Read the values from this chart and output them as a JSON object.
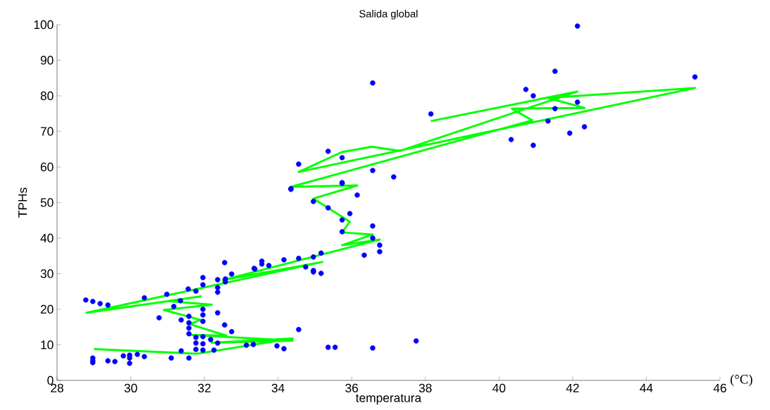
{
  "chart_data": {
    "type": "scatter",
    "title": "Salida global",
    "xlabel": "temperatura",
    "ylabel": "TPHs",
    "annotations": [
      "(°C)"
    ],
    "xlim": [
      28,
      46
    ],
    "ylim": [
      0,
      100
    ],
    "xticks": [
      28,
      30,
      32,
      34,
      36,
      38,
      40,
      42,
      44,
      46
    ],
    "yticks": [
      0,
      10,
      20,
      30,
      40,
      50,
      60,
      70,
      80,
      90,
      100
    ],
    "grid": false,
    "marker": "circle",
    "series": [
      {
        "color": "#0000ff",
        "x": [
          28.78,
          28.97,
          29.17,
          29.38,
          28.97,
          28.97,
          28.97,
          29.38,
          29.57,
          29.8,
          29.97,
          29.97,
          29.97,
          30.18,
          30.37,
          30.37,
          30.77,
          30.98,
          31.1,
          31.17,
          31.37,
          31.37,
          31.35,
          31.56,
          31.58,
          31.58,
          31.58,
          31.58,
          31.58,
          31.77,
          31.77,
          31.77,
          31.77,
          31.96,
          31.96,
          31.96,
          31.96,
          31.96,
          31.96,
          31.96,
          31.96,
          32.17,
          32.26,
          32.36,
          32.36,
          32.36,
          32.36,
          32.36,
          32.55,
          32.57,
          32.57,
          32.55,
          32.74,
          32.74,
          33.14,
          33.33,
          33.35,
          33.37,
          33.56,
          33.56,
          33.75,
          33.97,
          34.16,
          34.16,
          34.56,
          34.56,
          34.75,
          34.96,
          34.96,
          34.96,
          35.17,
          35.17,
          35.36,
          35.55,
          36.57,
          37.75,
          34.35,
          35.74,
          36.15,
          34.96,
          35.36,
          35.95,
          35.74,
          35.74,
          36.34,
          36.57,
          36.57,
          36.76,
          36.76,
          36.57,
          38.15,
          35.36,
          34.56,
          35.74,
          36.57,
          37.14,
          35.74,
          34.35,
          42.13,
          41.52,
          45.32,
          40.73,
          40.93,
          42.13,
          41.52,
          41.33,
          42.32,
          41.92,
          40.33,
          40.93
        ],
        "values": [
          22.6,
          22.2,
          21.6,
          21.2,
          6.3,
          5.5,
          5.0,
          5.5,
          5.3,
          6.9,
          7.1,
          6.3,
          4.8,
          7.3,
          6.7,
          23.2,
          17.6,
          24.2,
          6.3,
          20.8,
          17.0,
          8.3,
          22.4,
          25.7,
          18.0,
          16.2,
          14.7,
          13.1,
          6.3,
          25.1,
          12.1,
          10.5,
          8.7,
          28.9,
          26.9,
          20.0,
          18.4,
          16.6,
          12.3,
          10.3,
          8.5,
          11.5,
          8.5,
          28.3,
          26.1,
          24.8,
          19.0,
          10.5,
          15.6,
          28.5,
          27.7,
          33.1,
          29.9,
          13.7,
          9.9,
          10.1,
          31.5,
          31.3,
          33.5,
          32.7,
          32.3,
          9.7,
          33.9,
          8.9,
          34.3,
          14.3,
          31.9,
          34.7,
          30.9,
          30.5,
          35.8,
          30.1,
          9.3,
          9.3,
          9.1,
          11.1,
          53.9,
          55.4,
          52.1,
          50.3,
          48.5,
          46.9,
          45.1,
          41.8,
          35.2,
          43.4,
          40.0,
          38.0,
          36.2,
          83.6,
          74.9,
          64.4,
          60.8,
          62.6,
          59.0,
          57.2,
          55.6,
          53.7,
          99.6,
          86.9,
          85.3,
          81.8,
          80.0,
          78.2,
          76.4,
          72.9,
          71.3,
          69.5,
          67.7,
          66.1
        ]
      },
      {
        "type": "line",
        "color": "#00ff00",
        "line_style": "solid",
        "marker": "none",
        "x": [
          29.0,
          31.8,
          34.4,
          32.2,
          34.4,
          31.6,
          32.6,
          31.6,
          31.9,
          30.9,
          32.2,
          31.0,
          31.9,
          28.8,
          35.2,
          32.5,
          36.76,
          35.74,
          36.57,
          35.74,
          35.95,
          34.96,
          36.15,
          34.35,
          40.9,
          40.35,
          42.32,
          41.33,
          45.32,
          34.56,
          35.74,
          36.55,
          37.3,
          42.13,
          38.15
        ],
        "values": [
          8.8,
          7.5,
          11.8,
          10.6,
          11.2,
          12.8,
          12.6,
          15.8,
          17.0,
          19.8,
          21.3,
          22.3,
          23.6,
          19.0,
          33.3,
          28.2,
          39.6,
          38.0,
          41.0,
          41.6,
          44.6,
          51.1,
          54.8,
          54.4,
          73.1,
          76.4,
          76.6,
          79.4,
          82.2,
          58.6,
          64.2,
          65.7,
          64.5,
          81.2,
          72.9
        ]
      }
    ]
  }
}
